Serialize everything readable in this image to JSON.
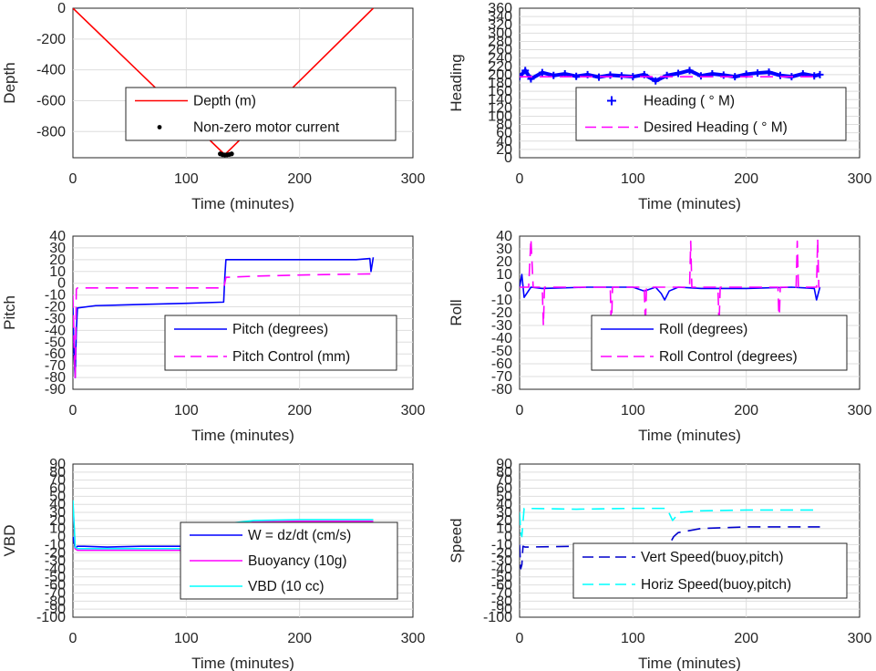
{
  "chart_data": [
    {
      "type": "line",
      "ylabel": "Depth",
      "xlabel": "Time (minutes)",
      "xlim": [
        0,
        300
      ],
      "ylim": [
        -970,
        0
      ],
      "xticks": [
        "0",
        "100",
        "200",
        "300"
      ],
      "yticks": [
        "0",
        "-200",
        "-400",
        "-600",
        "-800"
      ],
      "yticks_values": [
        0,
        -200,
        -400,
        -600,
        -800
      ],
      "grid": true,
      "legend_position": "lower-right",
      "series": [
        {
          "name": "Depth (m)",
          "color": "#ff0000",
          "style": "solid",
          "x": [
            0,
            134,
            265
          ],
          "y": [
            0,
            -950,
            0
          ]
        },
        {
          "name": "Non-zero motor current",
          "color": "#000000",
          "style": "dots",
          "x": [
            130,
            132,
            134,
            136,
            138,
            140
          ],
          "y": [
            -945,
            -950,
            -952,
            -951,
            -949,
            -945
          ]
        }
      ]
    },
    {
      "type": "line",
      "ylabel": "Heading",
      "xlabel": "Time (minutes)",
      "xlim": [
        0,
        300
      ],
      "ylim": [
        0,
        360
      ],
      "xticks": [
        "0",
        "100",
        "200",
        "300"
      ],
      "yticks": [
        "0",
        "20",
        "40",
        "60",
        "80",
        "100",
        "120",
        "140",
        "160",
        "180",
        "200",
        "220",
        "240",
        "260",
        "280",
        "300",
        "320",
        "340",
        "360"
      ],
      "yticks_values": [
        0,
        20,
        40,
        60,
        80,
        100,
        120,
        140,
        160,
        180,
        200,
        220,
        240,
        260,
        280,
        300,
        320,
        340,
        360
      ],
      "grid": true,
      "legend_position": "lower-right",
      "series": [
        {
          "name": "Heading ( ° M)",
          "color": "#0000ff",
          "style": "plus",
          "x": [
            0,
            5,
            10,
            20,
            30,
            40,
            50,
            60,
            70,
            80,
            90,
            100,
            110,
            120,
            130,
            140,
            150,
            160,
            170,
            180,
            190,
            200,
            210,
            220,
            230,
            240,
            250,
            260,
            265
          ],
          "y": [
            195,
            210,
            190,
            205,
            198,
            202,
            196,
            200,
            194,
            199,
            197,
            195,
            200,
            185,
            198,
            203,
            210,
            197,
            202,
            199,
            195,
            201,
            204,
            206,
            198,
            195,
            202,
            197,
            200
          ]
        },
        {
          "name": "Desired Heading ( ° M)",
          "color": "#ff00ff",
          "style": "dashed",
          "x": [
            0,
            265
          ],
          "y": [
            195,
            195
          ]
        }
      ]
    },
    {
      "type": "line",
      "ylabel": "Pitch",
      "xlabel": "Time (minutes)",
      "xlim": [
        0,
        300
      ],
      "ylim": [
        -90,
        40
      ],
      "xticks": [
        "0",
        "100",
        "200",
        "300"
      ],
      "yticks": [
        "40",
        "30",
        "20",
        "10",
        "0",
        "-10",
        "-20",
        "-30",
        "-40",
        "-50",
        "-60",
        "-70",
        "-80",
        "-90"
      ],
      "yticks_values": [
        40,
        30,
        20,
        10,
        0,
        -10,
        -20,
        -30,
        -40,
        -50,
        -60,
        -70,
        -80,
        -90
      ],
      "grid": true,
      "legend_position": "lower-right",
      "series": [
        {
          "name": "Pitch (degrees)",
          "color": "#0000ff",
          "style": "solid",
          "x": [
            0,
            1,
            2,
            3,
            4,
            20,
            60,
            100,
            133,
            134,
            135,
            150,
            200,
            250,
            262,
            263,
            265
          ],
          "y": [
            -20,
            -60,
            -80,
            -40,
            -21,
            -19,
            -18,
            -17,
            -16,
            5,
            20,
            20,
            20,
            20,
            21,
            10,
            22
          ]
        },
        {
          "name": "Pitch Control (mm)",
          "color": "#ff00ff",
          "style": "dashed",
          "x": [
            0,
            1,
            2,
            3,
            4,
            133,
            134,
            135,
            160,
            200,
            265
          ],
          "y": [
            -10,
            -50,
            -80,
            -5,
            -4,
            -4,
            0,
            5,
            6,
            7,
            8
          ]
        }
      ]
    },
    {
      "type": "line",
      "ylabel": "Roll",
      "xlabel": "Time (minutes)",
      "xlim": [
        0,
        300
      ],
      "ylim": [
        -80,
        40
      ],
      "xticks": [
        "0",
        "100",
        "200",
        "300"
      ],
      "yticks": [
        "40",
        "30",
        "20",
        "10",
        "0",
        "-10",
        "-20",
        "-30",
        "-40",
        "-50",
        "-60",
        "-70",
        "-80"
      ],
      "yticks_values": [
        40,
        30,
        20,
        10,
        0,
        -10,
        -20,
        -30,
        -40,
        -50,
        -60,
        -70,
        -80
      ],
      "grid": true,
      "legend_position": "lower-right",
      "series": [
        {
          "name": "Roll (degrees)",
          "color": "#0000ff",
          "style": "solid",
          "x": [
            0,
            2,
            4,
            10,
            20,
            60,
            100,
            110,
            120,
            125,
            128,
            132,
            140,
            160,
            200,
            240,
            260,
            262,
            265
          ],
          "y": [
            0,
            10,
            -8,
            0,
            -1,
            0,
            0,
            -3,
            0,
            -5,
            -10,
            -3,
            0,
            -1,
            -1,
            0,
            -1,
            -10,
            0
          ]
        },
        {
          "name": "Roll Control (degrees)",
          "color": "#ff00ff",
          "style": "dashed",
          "x": [
            0,
            8,
            10,
            12,
            20,
            21,
            22,
            80,
            81,
            82,
            110,
            111,
            112,
            150,
            151,
            152,
            175,
            176,
            177,
            228,
            229,
            230,
            244,
            245,
            246,
            262,
            263,
            264,
            265
          ],
          "y": [
            0,
            0,
            38,
            0,
            0,
            -30,
            0,
            0,
            -35,
            0,
            0,
            -30,
            0,
            0,
            36,
            0,
            0,
            -30,
            0,
            0,
            -30,
            0,
            0,
            36,
            0,
            0,
            38,
            0,
            0
          ]
        }
      ]
    },
    {
      "type": "line",
      "ylabel": "VBD",
      "xlabel": "Time (minutes)",
      "xlim": [
        0,
        300
      ],
      "ylim": [
        -100,
        90
      ],
      "xticks": [
        "0",
        "100",
        "200",
        "300"
      ],
      "yticks": [
        "90",
        "80",
        "70",
        "60",
        "50",
        "40",
        "30",
        "20",
        "10",
        "0",
        "-10",
        "-20",
        "-30",
        "-40",
        "-50",
        "-60",
        "-70",
        "-80",
        "-90",
        "-100"
      ],
      "yticks_values": [
        90,
        80,
        70,
        60,
        50,
        40,
        30,
        20,
        10,
        0,
        -10,
        -20,
        -30,
        -40,
        -50,
        -60,
        -70,
        -80,
        -90,
        -100
      ],
      "grid": true,
      "legend_position": "lower-right",
      "series": [
        {
          "name": "W = dz/dt (cm/s)",
          "color": "#0000ff",
          "style": "solid",
          "x": [
            0,
            2,
            4,
            10,
            30,
            60,
            100,
            133,
            135,
            140,
            150,
            200,
            265
          ],
          "y": [
            0,
            -15,
            -12,
            -12,
            -13,
            -12,
            -12,
            -13,
            12,
            12,
            13,
            13,
            12
          ]
        },
        {
          "name": "Buoyancy (10g)",
          "color": "#ff00ff",
          "style": "solid",
          "x": [
            0,
            2,
            4,
            133,
            135,
            160,
            200,
            265
          ],
          "y": [
            40,
            -15,
            -17,
            -17,
            15,
            18,
            19,
            19
          ]
        },
        {
          "name": "VBD (10 cc)",
          "color": "#00ffff",
          "style": "solid",
          "x": [
            0,
            2,
            4,
            133,
            135,
            160,
            200,
            265
          ],
          "y": [
            45,
            -13,
            -15,
            -15,
            16,
            20,
            21,
            21
          ]
        }
      ]
    },
    {
      "type": "line",
      "ylabel": "Speed",
      "xlabel": "Time (minutes)",
      "xlim": [
        0,
        300
      ],
      "ylim": [
        -100,
        90
      ],
      "xticks": [
        "0",
        "100",
        "200",
        "300"
      ],
      "yticks": [
        "90",
        "80",
        "70",
        "60",
        "50",
        "40",
        "30",
        "20",
        "10",
        "0",
        "-10",
        "-20",
        "-30",
        "-40",
        "-50",
        "-60",
        "-70",
        "-80",
        "-90",
        "-100"
      ],
      "yticks_values": [
        90,
        80,
        70,
        60,
        50,
        40,
        30,
        20,
        10,
        0,
        -10,
        -20,
        -30,
        -40,
        -50,
        -60,
        -70,
        -80,
        -90,
        -100
      ],
      "grid": true,
      "legend_position": "lower-right",
      "series": [
        {
          "name": "Vert Speed(buoy,pitch)",
          "color": "#0000cc",
          "style": "dashed",
          "x": [
            0,
            1,
            2,
            3,
            5,
            50,
            100,
            133,
            134,
            136,
            140,
            160,
            200,
            265
          ],
          "y": [
            -10,
            -40,
            -35,
            -12,
            -13,
            -12,
            -12,
            -12,
            -5,
            0,
            5,
            10,
            12,
            12
          ]
        },
        {
          "name": "Horiz Speed(buoy,pitch)",
          "color": "#00ffff",
          "style": "dashed",
          "x": [
            0,
            1,
            2,
            4,
            50,
            100,
            130,
            135,
            138,
            140,
            160,
            200,
            265
          ],
          "y": [
            30,
            5,
            0,
            35,
            34,
            35,
            35,
            20,
            25,
            30,
            32,
            33,
            33
          ]
        }
      ]
    }
  ]
}
